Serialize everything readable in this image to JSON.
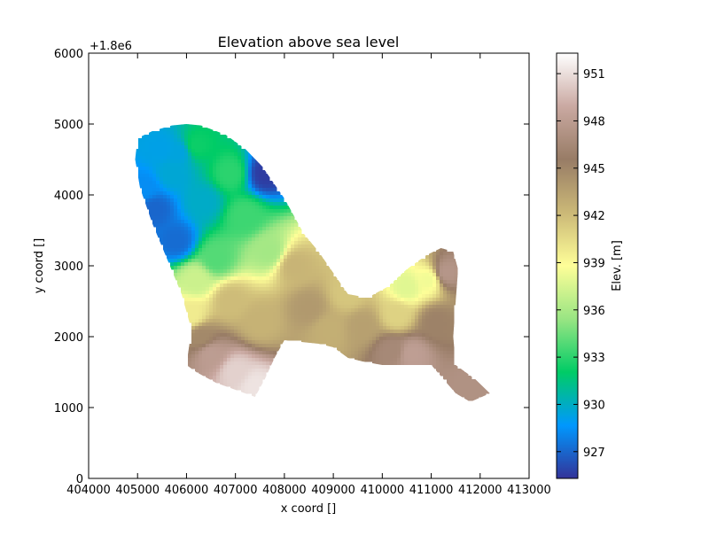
{
  "chart_data": {
    "type": "heatmap",
    "title": "Elevation above sea level",
    "xlabel": "x coord []",
    "ylabel": "y coord []",
    "offset_text": "+1.8e6",
    "xlim": [
      404000,
      413000
    ],
    "ylim": [
      0,
      6000
    ],
    "x_ticks": [
      404000,
      405000,
      406000,
      407000,
      408000,
      409000,
      410000,
      411000,
      412000,
      413000
    ],
    "y_ticks": [
      0,
      1000,
      2000,
      3000,
      4000,
      5000,
      6000
    ],
    "x_tick_labels": [
      "404000",
      "405000",
      "406000",
      "407000",
      "408000",
      "409000",
      "410000",
      "411000",
      "412000",
      "413000"
    ],
    "y_tick_labels": [
      "0",
      "1000",
      "2000",
      "3000",
      "4000",
      "5000",
      "6000"
    ],
    "colorbar": {
      "label": "Elev. [m]",
      "range": [
        925.3,
        952.3
      ],
      "ticks": [
        927,
        930,
        933,
        936,
        939,
        942,
        945,
        948,
        951
      ],
      "tick_labels": [
        "927",
        "930",
        "933",
        "936",
        "939",
        "942",
        "945",
        "948",
        "951"
      ],
      "colormap": "terrain",
      "colors": [
        "#333399",
        "#0098fe",
        "#00cc66",
        "#99e583",
        "#fefe98",
        "#cbb877",
        "#987c66",
        "#caa9a2",
        "#ffffff"
      ]
    },
    "grid": false,
    "region_outline": [
      [
        405000,
        4800
      ],
      [
        405300,
        4900
      ],
      [
        405700,
        4980
      ],
      [
        406000,
        5000
      ],
      [
        406300,
        4980
      ],
      [
        406800,
        4850
      ],
      [
        407200,
        4650
      ],
      [
        407550,
        4400
      ],
      [
        407800,
        4150
      ],
      [
        408000,
        3950
      ],
      [
        408200,
        3700
      ],
      [
        408400,
        3450
      ],
      [
        408700,
        3200
      ],
      [
        409000,
        2900
      ],
      [
        409300,
        2600
      ],
      [
        409700,
        2550
      ],
      [
        410100,
        2700
      ],
      [
        410500,
        2950
      ],
      [
        410900,
        3150
      ],
      [
        411200,
        3250
      ],
      [
        411450,
        3200
      ],
      [
        411550,
        2950
      ],
      [
        411500,
        2500
      ],
      [
        411450,
        2000
      ],
      [
        411500,
        1600
      ],
      [
        411900,
        1400
      ],
      [
        412200,
        1200
      ],
      [
        411800,
        1080
      ],
      [
        411500,
        1200
      ],
      [
        411000,
        1600
      ],
      [
        410500,
        1600
      ],
      [
        410000,
        1600
      ],
      [
        409600,
        1650
      ],
      [
        409300,
        1700
      ],
      [
        409000,
        1850
      ],
      [
        408700,
        1900
      ],
      [
        408000,
        1950
      ],
      [
        407800,
        1700
      ],
      [
        407600,
        1400
      ],
      [
        407400,
        1150
      ],
      [
        407000,
        1250
      ],
      [
        406600,
        1350
      ],
      [
        406200,
        1500
      ],
      [
        406000,
        1600
      ],
      [
        406100,
        2100
      ],
      [
        405900,
        2600
      ],
      [
        405600,
        3100
      ],
      [
        405300,
        3600
      ],
      [
        405050,
        4100
      ],
      [
        404950,
        4500
      ]
    ],
    "elevation_features": [
      {
        "x": 405150,
        "y": 4100,
        "elev": 928.3
      },
      {
        "x": 405350,
        "y": 3800,
        "elev": 927.0
      },
      {
        "x": 405500,
        "y": 4650,
        "elev": 929.2
      },
      {
        "x": 405850,
        "y": 4600,
        "elev": 929.4
      },
      {
        "x": 405800,
        "y": 3350,
        "elev": 927.2
      },
      {
        "x": 405700,
        "y": 4300,
        "elev": 929.6
      },
      {
        "x": 406350,
        "y": 3900,
        "elev": 929.9
      },
      {
        "x": 406200,
        "y": 4700,
        "elev": 932.3
      },
      {
        "x": 406900,
        "y": 4300,
        "elev": 933.0
      },
      {
        "x": 407200,
        "y": 3700,
        "elev": 933.4
      },
      {
        "x": 406600,
        "y": 3100,
        "elev": 933.9
      },
      {
        "x": 407700,
        "y": 3200,
        "elev": 935.8
      },
      {
        "x": 406200,
        "y": 2800,
        "elev": 937.1
      },
      {
        "x": 406100,
        "y": 2300,
        "elev": 939.7
      },
      {
        "x": 406900,
        "y": 2500,
        "elev": 942.0
      },
      {
        "x": 407500,
        "y": 2200,
        "elev": 942.5
      },
      {
        "x": 408200,
        "y": 3000,
        "elev": 942.4
      },
      {
        "x": 408500,
        "y": 2400,
        "elev": 943.9
      },
      {
        "x": 408900,
        "y": 2100,
        "elev": 942.7
      },
      {
        "x": 409600,
        "y": 2150,
        "elev": 943.5
      },
      {
        "x": 410300,
        "y": 2300,
        "elev": 940.9
      },
      {
        "x": 410500,
        "y": 2700,
        "elev": 937.8
      },
      {
        "x": 410950,
        "y": 2800,
        "elev": 938.4
      },
      {
        "x": 411300,
        "y": 2900,
        "elev": 947.5
      },
      {
        "x": 411100,
        "y": 2200,
        "elev": 945.2
      },
      {
        "x": 410600,
        "y": 1750,
        "elev": 948.1
      },
      {
        "x": 410200,
        "y": 1800,
        "elev": 946.5
      },
      {
        "x": 411800,
        "y": 1300,
        "elev": 947.2
      },
      {
        "x": 406500,
        "y": 1750,
        "elev": 948.0
      },
      {
        "x": 407000,
        "y": 1500,
        "elev": 950.5
      },
      {
        "x": 407400,
        "y": 1300,
        "elev": 951.2
      },
      {
        "x": 406300,
        "y": 2000,
        "elev": 944.8
      },
      {
        "x": 409300,
        "y": 2600,
        "elev": 941.5
      },
      {
        "x": 407600,
        "y": 4300,
        "elev": 925.6
      }
    ]
  }
}
